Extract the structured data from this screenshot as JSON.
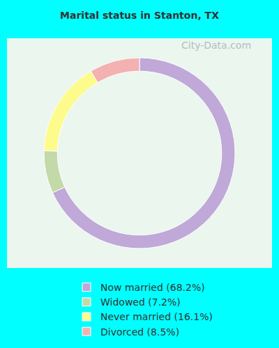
{
  "chart_data": {
    "type": "pie",
    "title": "Marital status in Stanton, TX",
    "categories": [
      "Now married (68.2%)",
      "Widowed (7.2%)",
      "Never married (16.1%)",
      "Divorced (8.5%)"
    ],
    "values": [
      68.2,
      7.2,
      16.1,
      8.5
    ],
    "colors": [
      "#c0a8d8",
      "#c3d9a8",
      "#fdfb8c",
      "#f4b1b1"
    ],
    "legend": "bottom",
    "annotations": [
      "City-Data.com"
    ]
  }
}
